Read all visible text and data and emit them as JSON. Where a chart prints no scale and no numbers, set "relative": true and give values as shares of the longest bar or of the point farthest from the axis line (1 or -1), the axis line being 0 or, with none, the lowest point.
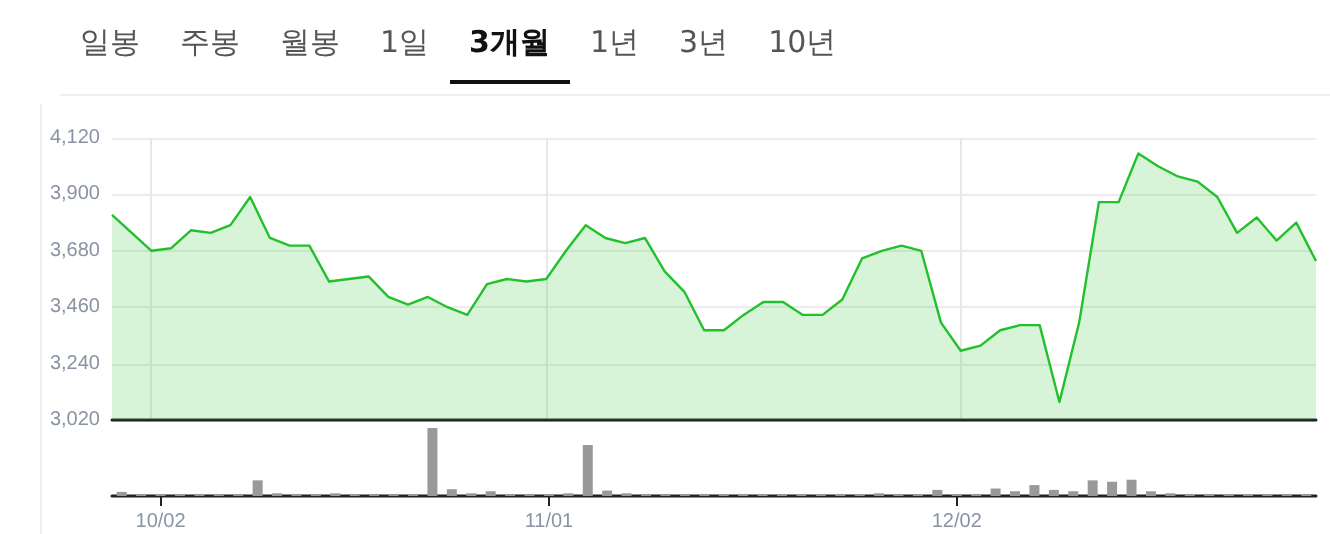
{
  "chart_data": [
    {
      "type": "area",
      "annotations": [
        "일봉",
        "주봉",
        "월봉",
        "1일",
        "3개월",
        "1년",
        "3년",
        "10년"
      ],
      "categories": [
        null,
        null,
        null,
        null,
        null,
        null,
        null,
        null,
        null,
        null,
        null,
        null,
        null,
        null,
        null,
        null,
        null,
        null,
        null,
        null,
        null,
        null,
        null,
        null,
        null,
        null,
        null,
        null,
        null,
        null,
        null,
        null,
        null,
        null,
        null,
        null,
        null,
        null,
        null,
        null,
        null,
        null,
        null,
        null,
        null,
        null,
        null,
        null,
        null,
        null,
        null,
        null,
        null,
        null,
        null,
        null,
        null,
        null,
        null,
        null,
        null,
        null
      ],
      "series": [
        {
          "color": "#22c02a",
          "values": [
            3820,
            3750,
            3680,
            3690,
            3760,
            3750,
            3780,
            3890,
            3730,
            3700,
            3700,
            3560,
            3570,
            3580,
            3500,
            3470,
            3500,
            3460,
            3430,
            3550,
            3570,
            3560,
            3570,
            3680,
            3780,
            3730,
            3710,
            3730,
            3600,
            3520,
            3370,
            3370,
            3430,
            3480,
            3480,
            3430,
            3430,
            3490,
            3650,
            3680,
            3700,
            3680,
            3400,
            3290,
            3310,
            3370,
            3390,
            3390,
            3090,
            3400,
            3870,
            3870,
            4060,
            4010,
            3970,
            3950,
            3890,
            3750,
            3810,
            3720,
            3790,
            3640
          ]
        }
      ],
      "ylim": [
        3020,
        4120
      ],
      "yticks": [
        {
          "value": 3020,
          "label": "3,020"
        },
        {
          "value": 3240,
          "label": "3,240"
        },
        {
          "value": 3460,
          "label": "3,460"
        },
        {
          "value": 3680,
          "label": "3,680"
        },
        {
          "value": 3900,
          "label": "3,900"
        },
        {
          "value": 4120,
          "label": "4,120"
        }
      ],
      "grid": true,
      "tick_labels": "y",
      "marker": "none"
    },
    {
      "type": "bar",
      "relative": true,
      "categories": [
        null,
        null,
        "10/02",
        null,
        null,
        null,
        null,
        null,
        null,
        null,
        null,
        null,
        null,
        null,
        null,
        null,
        null,
        null,
        null,
        null,
        null,
        null,
        "11/01",
        null,
        null,
        null,
        null,
        null,
        null,
        null,
        null,
        null,
        null,
        null,
        null,
        null,
        null,
        null,
        null,
        null,
        null,
        null,
        null,
        "12/02",
        null,
        null,
        null,
        null,
        null,
        null,
        null,
        null,
        null,
        null,
        null,
        null,
        null,
        null,
        null,
        null,
        null,
        null
      ],
      "series": [
        {
          "color": "#999999",
          "values": [
            0.06,
            0.03,
            0.03,
            0.03,
            0.03,
            0.03,
            0.03,
            0.23,
            0.04,
            0.03,
            0.03,
            0.04,
            0.03,
            0.03,
            0.03,
            0.03,
            1.0,
            0.1,
            0.04,
            0.07,
            0.03,
            0.03,
            0.03,
            0.04,
            0.75,
            0.08,
            0.04,
            0.03,
            0.03,
            0.03,
            0.03,
            0.03,
            0.03,
            0.03,
            0.03,
            0.03,
            0.03,
            0.03,
            0.03,
            0.04,
            0.03,
            0.03,
            0.09,
            0.03,
            0.03,
            0.11,
            0.07,
            0.16,
            0.09,
            0.07,
            0.23,
            0.21,
            0.24,
            0.07,
            0.04,
            0.03,
            0.03,
            0.03,
            0.03,
            0.03,
            0.03,
            0.03
          ]
        }
      ],
      "grid": false
    }
  ]
}
